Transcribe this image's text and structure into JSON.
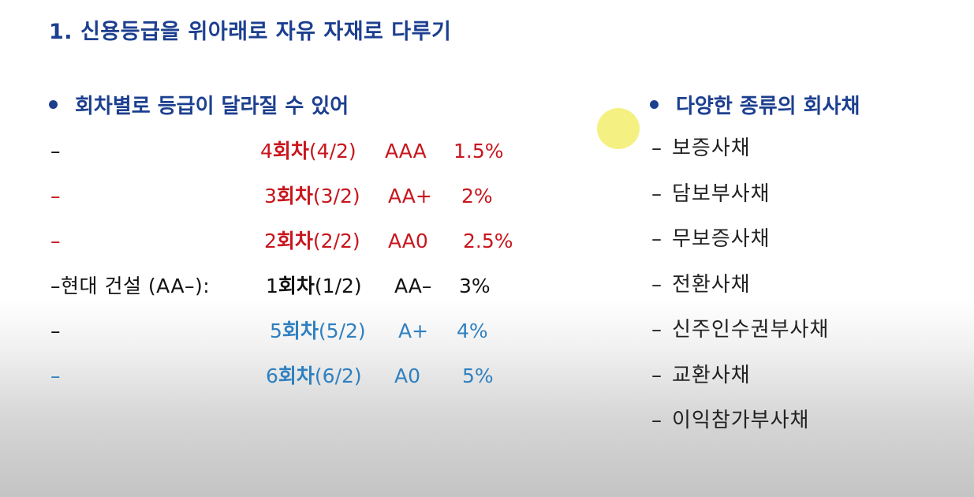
{
  "title": "1. 신용등급을 위아래로 자유 자재로 다루기",
  "left_section": {
    "heading": "회차별로 등급이 달라질 수 있어",
    "rows": [
      {
        "dash": "–",
        "prefix": "",
        "round_num": "4",
        "round_word": "회차",
        "round_date": "(4/2)",
        "rating": "AAA",
        "rate": "1.5%",
        "color": "#c8161d"
      },
      {
        "dash": "–",
        "prefix": "",
        "round_num": "3",
        "round_word": "회차",
        "round_date": "(3/2)",
        "rating": "AA+",
        "rate": "2%",
        "color": "#c8161d"
      },
      {
        "dash": "–",
        "prefix": "",
        "round_num": "2",
        "round_word": "회차",
        "round_date": "(2/2)",
        "rating": "AA0",
        "rate": "2.5%",
        "color": "#c8161d"
      },
      {
        "dash": "",
        "prefix": "–현대 건설 (AA–):",
        "round_num": "1",
        "round_word": "회차",
        "round_date": "(1/2)",
        "rating": "AA–",
        "rate": "3%",
        "color": "#111111"
      },
      {
        "dash": "–",
        "prefix": "",
        "round_num": "5",
        "round_word": "회차",
        "round_date": "(5/2)",
        "rating": "A+",
        "rate": "4%",
        "color": "#2f80c0"
      },
      {
        "dash": "–",
        "prefix": "",
        "round_num": "6",
        "round_word": "회차",
        "round_date": "(6/2)",
        "rating": "A0",
        "rate": "5%",
        "color": "#2f80c0"
      }
    ]
  },
  "right_section": {
    "heading": "다양한 종류의 회사채",
    "dash": "–",
    "items": [
      "보증사채",
      "담보부사채",
      "무보증사채",
      "전환사채",
      "신주인수권부사채",
      "교환사채",
      "이익참가부사채"
    ]
  },
  "colors": {
    "heading_blue": "#1c3f8f",
    "upgrade_red": "#c8161d",
    "current_black": "#111111",
    "downgrade_blue": "#2f80c0",
    "cursor_highlight": "#f3ef74"
  }
}
